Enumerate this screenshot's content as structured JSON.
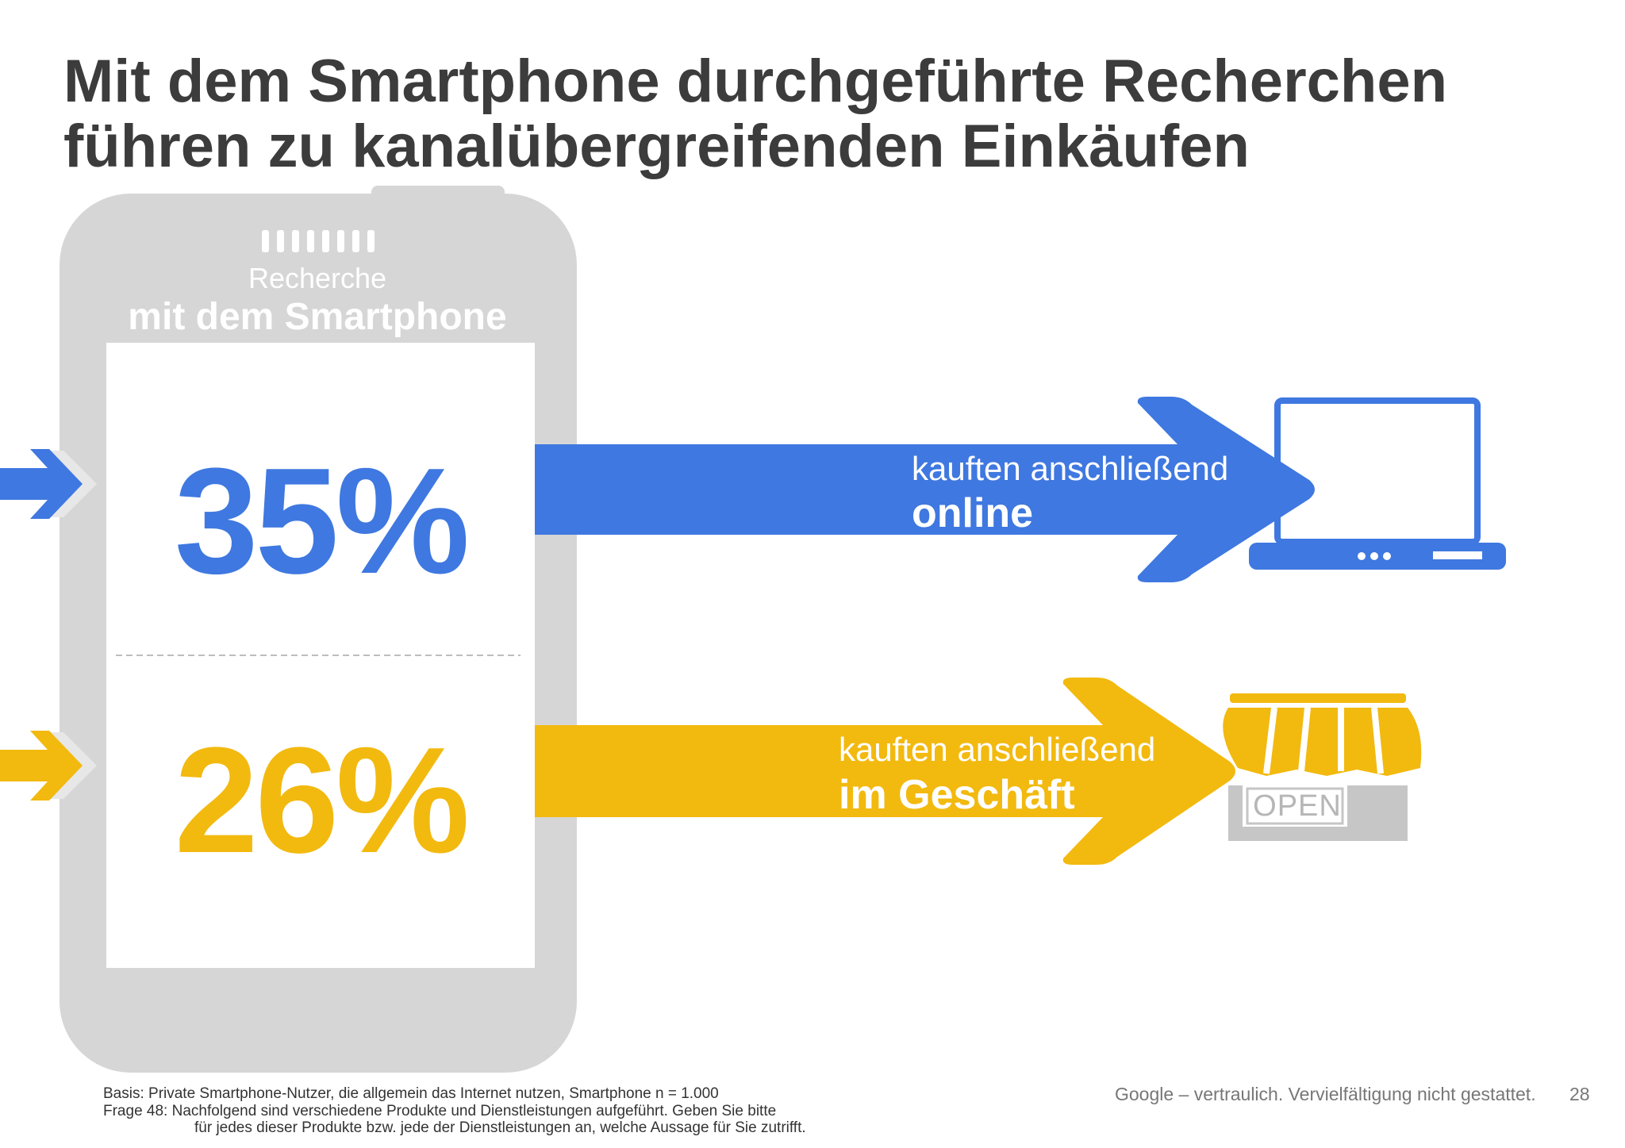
{
  "title": "Mit dem Smartphone durchgeführte Recherchen führen zu kanalübergreifenden Einkäufen",
  "phone": {
    "label_line1": "Recherche",
    "label_line2": "mit dem Smartphone"
  },
  "online": {
    "percent": "35%",
    "line1": "kauften anschließend",
    "line2": "online",
    "color": "#3f78e0",
    "icon": "laptop-icon"
  },
  "store": {
    "percent": "26%",
    "line1": "kauften anschließend",
    "line2": "im Geschäft",
    "color": "#f2b90f",
    "icon": "storefront-icon",
    "sign": "OPEN"
  },
  "footer": {
    "basis": "Basis: Private Smartphone-Nutzer, die allgemein das Internet nutzen, Smartphone n = 1.000",
    "question_line1": "Frage 48:   Nachfolgend sind verschiedene Produkte und Dienstleistungen aufgeführt. Geben Sie bitte",
    "question_line2": "für jedes dieser Produkte bzw. jede der Dienstleistungen an, welche Aussage für Sie zutrifft.",
    "confidential": "Google – vertraulich. Vervielfältigung nicht gestattet.",
    "page": "28"
  }
}
